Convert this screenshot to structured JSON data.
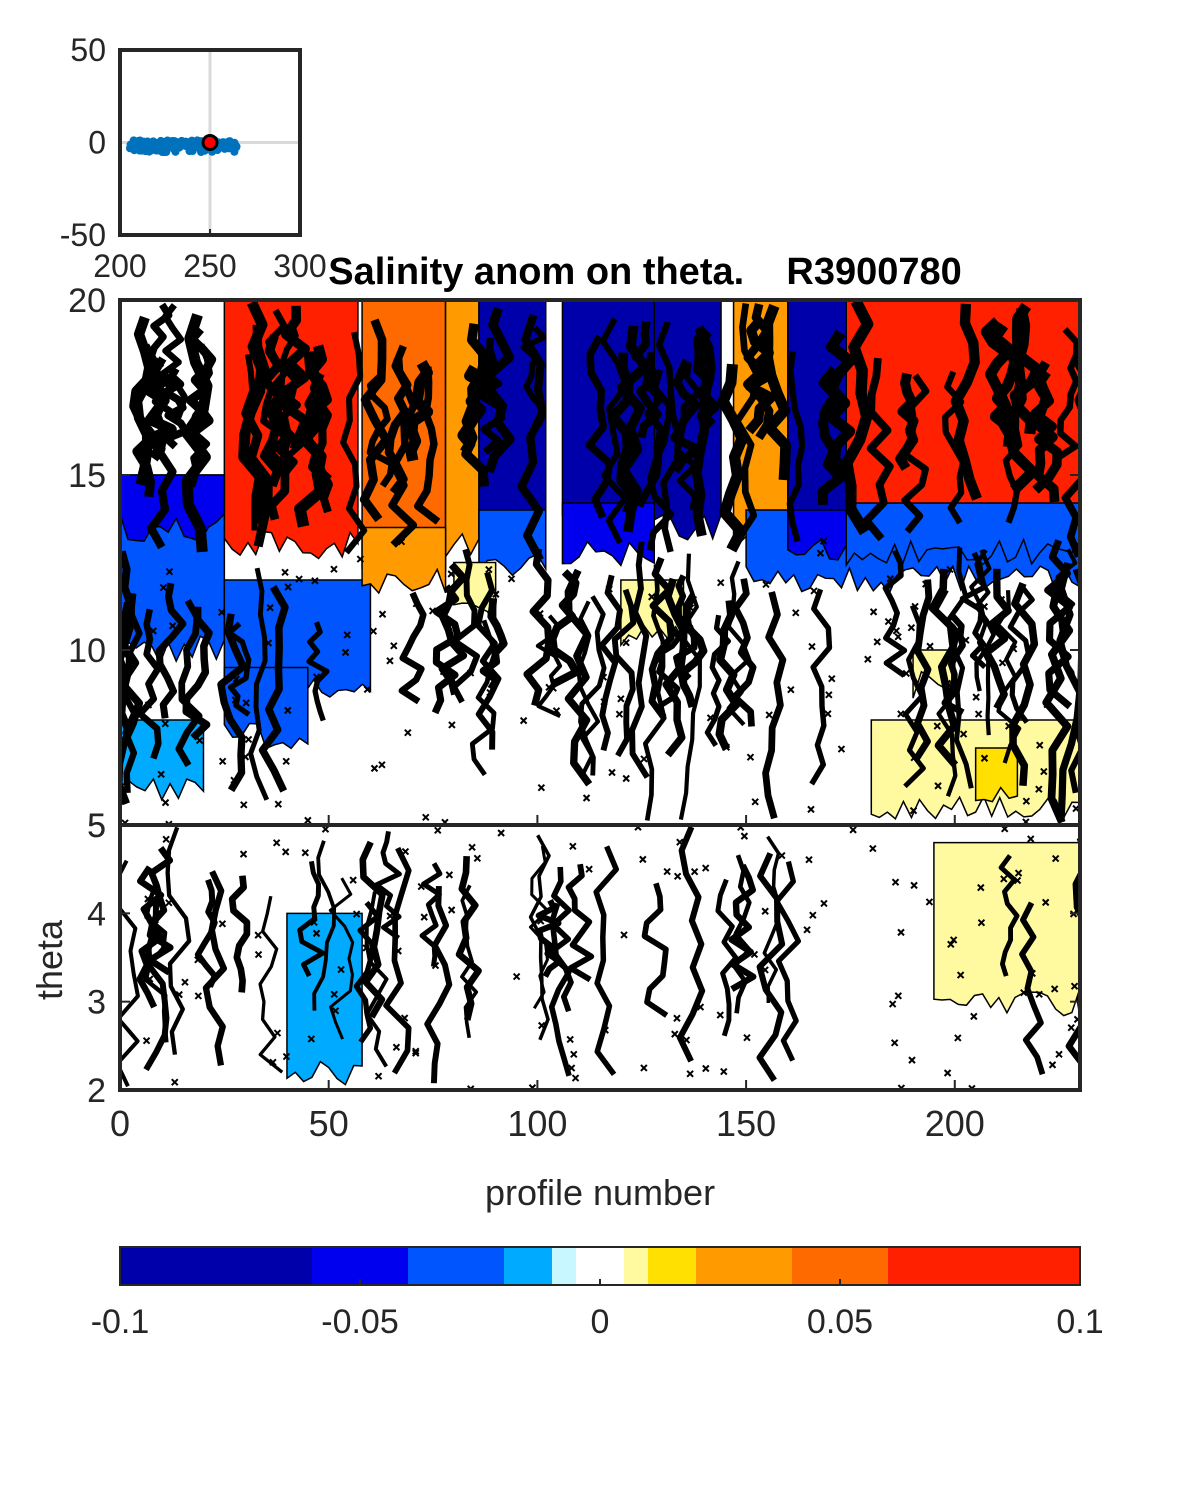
{
  "chart_data": [
    {
      "type": "scatter",
      "panel": "inset-map",
      "x_ticks": [
        "200",
        "250",
        "300"
      ],
      "y_ticks": [
        "50",
        "0",
        "-50"
      ],
      "xlim": [
        200,
        300
      ],
      "ylim": [
        -50,
        50
      ],
      "grid": true,
      "track": {
        "lon_range": [
          205,
          265
        ],
        "lat_range": [
          -2,
          2
        ],
        "color": "#0072BD"
      },
      "current_position": {
        "lon": 250,
        "lat": 0,
        "color": "#ff0000",
        "edge": "#000000"
      }
    },
    {
      "type": "heatmap",
      "panel": "section",
      "title": "Salinity anom on theta.    R3900780",
      "xlabel": "profile number",
      "ylabel": "theta",
      "xlim": [
        0,
        230
      ],
      "x_ticks": [
        "0",
        "50",
        "100",
        "150",
        "200"
      ],
      "upper_axis": {
        "ylim": [
          5,
          20
        ],
        "y_ticks": [
          "20",
          "15",
          "10",
          "5"
        ]
      },
      "lower_axis": {
        "ylim": [
          2,
          5
        ],
        "y_ticks": [
          "5",
          "4",
          "3",
          "2"
        ]
      },
      "bands": [
        {
          "x": [
            25,
            57
          ],
          "theta": [
            13,
            20
          ],
          "anomaly": 0.1
        },
        {
          "x": [
            58,
            78
          ],
          "theta": [
            12,
            20
          ],
          "anomaly": 0.05
        },
        {
          "x": [
            78,
            86
          ],
          "theta": [
            13,
            20
          ],
          "anomaly": 0.04
        },
        {
          "x": [
            86,
            102
          ],
          "theta": [
            13.5,
            20
          ],
          "anomaly": -0.06
        },
        {
          "x": [
            106,
            128
          ],
          "theta": [
            13.5,
            20
          ],
          "anomaly": -0.08
        },
        {
          "x": [
            128,
            144
          ],
          "theta": [
            13.5,
            20
          ],
          "anomaly": -0.06
        },
        {
          "x": [
            147,
            160
          ],
          "theta": [
            13,
            20
          ],
          "anomaly": 0.04
        },
        {
          "x": [
            160,
            174
          ],
          "theta": [
            13.5,
            20
          ],
          "anomaly": -0.06
        },
        {
          "x": [
            174,
            230
          ],
          "theta": [
            13.5,
            20
          ],
          "anomaly": 0.08
        },
        {
          "x": [
            0,
            25
          ],
          "theta": [
            10,
            15
          ],
          "anomaly": -0.03
        },
        {
          "x": [
            25,
            60
          ],
          "theta": [
            9,
            12
          ],
          "anomaly": -0.02
        },
        {
          "x": [
            150,
            230
          ],
          "theta": [
            12,
            14
          ],
          "anomaly": -0.02
        },
        {
          "x": [
            180,
            230
          ],
          "theta": [
            5.5,
            8
          ],
          "anomaly": 0.01
        },
        {
          "x": [
            195,
            230
          ],
          "theta": [
            3,
            4.8
          ],
          "anomaly": 0.01
        },
        {
          "x": [
            40,
            58
          ],
          "theta": [
            2.2,
            4
          ],
          "anomaly": -0.01
        }
      ]
    },
    {
      "type": "colorbar",
      "panel": "colorbar",
      "range": [
        -0.1,
        0.1
      ],
      "tick_labels": [
        "-0.1",
        "-0.05",
        "0",
        "0.05",
        "0.1"
      ],
      "segments": [
        {
          "from": -0.1,
          "to": -0.06,
          "color": "#0000aa"
        },
        {
          "from": -0.06,
          "to": -0.04,
          "color": "#0000ee"
        },
        {
          "from": -0.04,
          "to": -0.02,
          "color": "#0055ff"
        },
        {
          "from": -0.02,
          "to": -0.01,
          "color": "#00aaff"
        },
        {
          "from": -0.01,
          "to": -0.005,
          "color": "#c8f7ff"
        },
        {
          "from": -0.005,
          "to": 0.005,
          "color": "#ffffff"
        },
        {
          "from": 0.005,
          "to": 0.01,
          "color": "#fffaa0"
        },
        {
          "from": 0.01,
          "to": 0.02,
          "color": "#ffe000"
        },
        {
          "from": 0.02,
          "to": 0.04,
          "color": "#ff9a00"
        },
        {
          "from": 0.04,
          "to": 0.06,
          "color": "#ff6a00"
        },
        {
          "from": 0.06,
          "to": 0.1,
          "color": "#ff2000"
        }
      ]
    }
  ]
}
